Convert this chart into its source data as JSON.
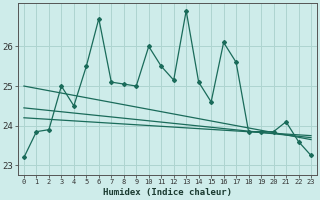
{
  "x": [
    0,
    1,
    2,
    3,
    4,
    5,
    6,
    7,
    8,
    9,
    10,
    11,
    12,
    13,
    14,
    15,
    16,
    17,
    18,
    19,
    20,
    21,
    22,
    23
  ],
  "y_humidex": [
    23.2,
    23.85,
    23.9,
    25.0,
    24.5,
    25.5,
    26.7,
    25.1,
    25.05,
    25.0,
    26.0,
    25.5,
    25.15,
    26.9,
    25.1,
    24.6,
    26.1,
    25.6,
    23.85,
    23.85,
    23.85,
    24.1,
    23.6,
    23.25
  ],
  "trend1_x": [
    0,
    23
  ],
  "trend1_y": [
    25.0,
    23.65
  ],
  "trend2_x": [
    0,
    23
  ],
  "trend2_y": [
    24.45,
    23.7
  ],
  "trend3_x": [
    0,
    23
  ],
  "trend3_y": [
    24.2,
    23.75
  ],
  "bg_color": "#ceecea",
  "grid_color": "#aed4d0",
  "line_color": "#1a6b5a",
  "xlabel": "Humidex (Indice chaleur)",
  "yticks": [
    23,
    24,
    25,
    26
  ],
  "ylim": [
    22.75,
    27.1
  ],
  "xlim": [
    -0.5,
    23.5
  ]
}
